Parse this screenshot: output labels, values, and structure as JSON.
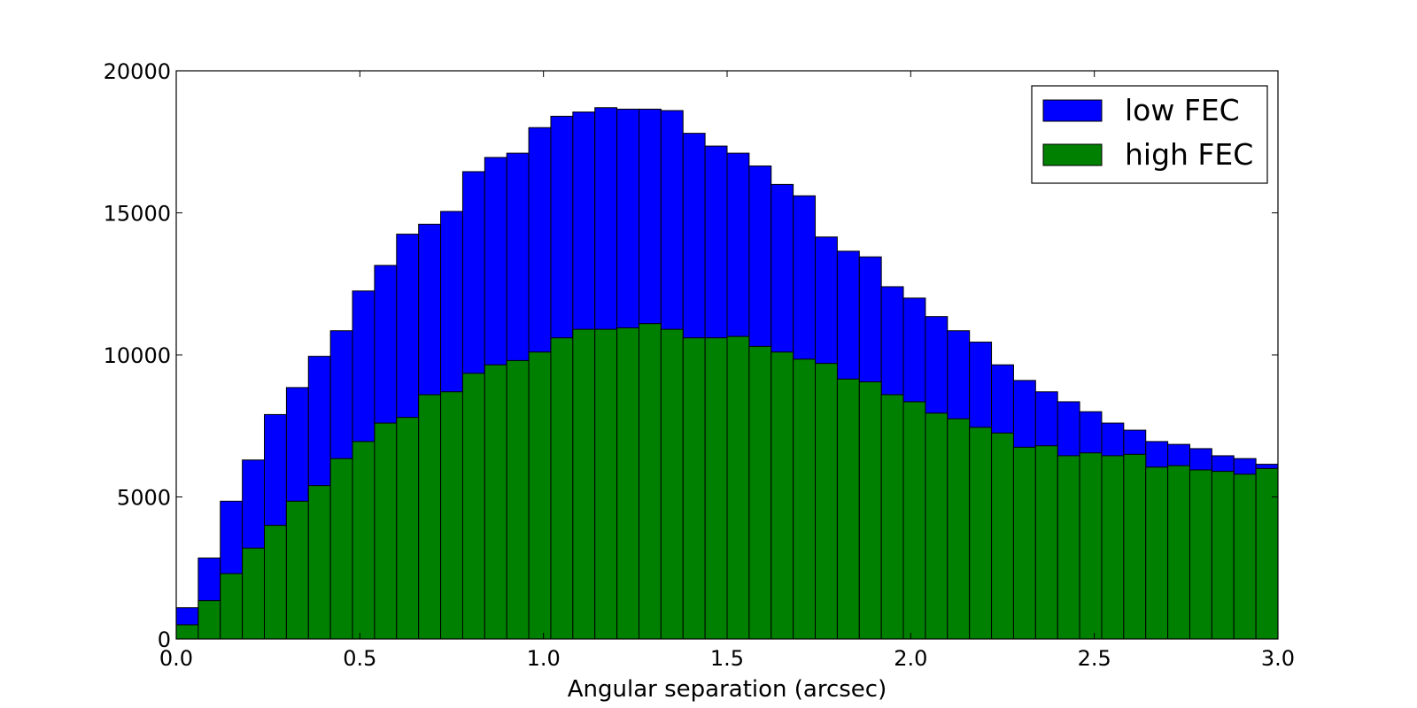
{
  "chart_data": {
    "type": "bar",
    "subtype": "overlapping-histogram",
    "title": "",
    "xlabel": "Angular separation (arcsec)",
    "ylabel": "",
    "xlim": [
      0.0,
      3.0
    ],
    "ylim": [
      0,
      20000
    ],
    "grid": false,
    "legend_position": "top-right",
    "bin_edges": [
      0.0,
      0.06,
      0.12,
      0.18,
      0.24,
      0.3,
      0.36,
      0.42,
      0.48,
      0.54,
      0.6,
      0.66,
      0.72,
      0.78,
      0.84,
      0.9,
      0.96,
      1.02,
      1.08,
      1.14,
      1.2,
      1.26,
      1.32,
      1.38,
      1.44,
      1.5,
      1.56,
      1.62,
      1.68,
      1.74,
      1.8,
      1.86,
      1.92,
      1.98,
      2.04,
      2.1,
      2.16,
      2.22,
      2.28,
      2.34,
      2.4,
      2.46,
      2.52,
      2.58,
      2.64,
      2.7,
      2.76,
      2.82,
      2.88,
      2.94,
      3.0
    ],
    "series": [
      {
        "name": "low FEC",
        "color": "#0000ff",
        "values": [
          1100,
          2850,
          4850,
          6300,
          7900,
          8850,
          9950,
          10850,
          12250,
          13150,
          14250,
          14600,
          15050,
          16450,
          16950,
          17100,
          18000,
          18400,
          18550,
          18700,
          18650,
          18650,
          18600,
          17800,
          17350,
          17100,
          16650,
          16000,
          15600,
          14150,
          13650,
          13450,
          12400,
          12000,
          11350,
          10850,
          10450,
          9650,
          9100,
          8700,
          8350,
          8000,
          7600,
          7350,
          6950,
          6850,
          6700,
          6450,
          6350,
          6150
        ]
      },
      {
        "name": "high FEC",
        "color": "#008000",
        "values": [
          500,
          1350,
          2300,
          3200,
          4000,
          4850,
          5400,
          6350,
          6950,
          7600,
          7800,
          8600,
          8700,
          9350,
          9650,
          9800,
          10100,
          10600,
          10900,
          10900,
          10950,
          11100,
          10900,
          10600,
          10600,
          10650,
          10300,
          10100,
          9850,
          9700,
          9150,
          9050,
          8600,
          8350,
          7950,
          7750,
          7450,
          7250,
          6750,
          6800,
          6450,
          6550,
          6450,
          6500,
          6050,
          6100,
          5950,
          5900,
          5800,
          6000
        ]
      }
    ],
    "x_ticks": [
      "0.0",
      "0.5",
      "1.0",
      "1.5",
      "2.0",
      "2.5",
      "3.0"
    ],
    "y_ticks": [
      "0",
      "5000",
      "10000",
      "15000",
      "20000"
    ],
    "x_tick_values": [
      0.0,
      0.5,
      1.0,
      1.5,
      2.0,
      2.5,
      3.0
    ],
    "y_tick_values": [
      0,
      5000,
      10000,
      15000,
      20000
    ]
  }
}
